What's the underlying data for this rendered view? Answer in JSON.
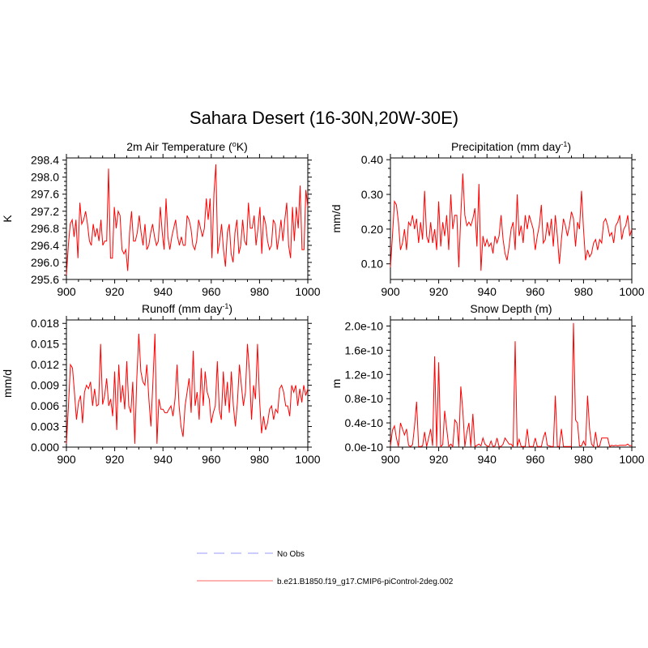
{
  "figure": {
    "title": "Sahara Desert (16-30N,20W-30E)"
  },
  "colors": {
    "series": "#ff0000",
    "obs": "#9999ff",
    "axis": "#000000"
  },
  "legend": {
    "entries": [
      {
        "label": "No Obs",
        "style": "dashed",
        "color": "#9999ff"
      },
      {
        "label": "b.e21.B1850.f19_g17.CMIP6-piControl-2deg.002",
        "style": "solid",
        "color": "#ff0000"
      }
    ]
  },
  "chart_data": [
    {
      "type": "line",
      "title": "2m Air Temperature (",
      "title_sup": "o",
      "title_suffix": "K)",
      "xlabel": "",
      "ylabel": "K",
      "xlim": [
        900,
        1000
      ],
      "ylim": [
        295.6,
        298.45
      ],
      "xticks": [
        900,
        920,
        940,
        960,
        980,
        1000
      ],
      "yticks": [
        295.6,
        296.0,
        296.4,
        296.8,
        297.2,
        297.6,
        298.0,
        298.4
      ],
      "ytick_labels": [
        "295.6",
        "296.0",
        "296.4",
        "296.8",
        "297.2",
        "297.6",
        "298.0",
        "298.4"
      ],
      "x_start": 900,
      "series": [
        {
          "name": "b.e21.B1850.f19_g17.CMIP6-piControl-2deg.002",
          "values": [
            295.7,
            296.4,
            296.9,
            297.0,
            296.6,
            297.0,
            296.1,
            297.4,
            296.9,
            297.0,
            297.2,
            296.9,
            296.5,
            296.4,
            296.9,
            296.6,
            296.8,
            296.5,
            297.0,
            296.4,
            296.5,
            296.5,
            298.2,
            296.1,
            296.1,
            297.3,
            296.8,
            297.2,
            297.1,
            296.3,
            296.2,
            296.3,
            295.8,
            296.7,
            297.2,
            296.5,
            296.5,
            296.7,
            297.1,
            296.7,
            296.4,
            296.9,
            296.3,
            296.4,
            296.7,
            296.9,
            296.6,
            296.4,
            296.5,
            297.3,
            296.7,
            296.3,
            297.5,
            296.6,
            296.3,
            296.6,
            296.8,
            297.0,
            296.6,
            296.4,
            296.6,
            296.4,
            296.4,
            297.1,
            297.0,
            296.8,
            296.4,
            296.3,
            296.5,
            297.0,
            296.8,
            296.6,
            296.8,
            297.5,
            297.0,
            297.5,
            296.1,
            297.6,
            298.3,
            296.2,
            296.5,
            296.9,
            296.3,
            295.9,
            296.7,
            296.9,
            296.2,
            296.0,
            296.7,
            297.0,
            296.2,
            296.4,
            297.0,
            296.5,
            296.4,
            297.4,
            296.8,
            296.8,
            297.1,
            296.4,
            296.8,
            297.3,
            296.2,
            297.1,
            296.9,
            296.5,
            296.3,
            296.4,
            297.0,
            296.9,
            296.3,
            296.6,
            297.0,
            296.5,
            297.0,
            297.4,
            296.4,
            296.1,
            297.3,
            296.5,
            297.3,
            296.8,
            297.8,
            296.3,
            296.3,
            297.7,
            297.3
          ]
        }
      ]
    },
    {
      "type": "line",
      "title": "Precipitation (mm day",
      "title_sup": "-1",
      "title_suffix": ")",
      "xlabel": "",
      "ylabel": "mm/d",
      "xlim": [
        900,
        1000
      ],
      "ylim": [
        0.055,
        0.405
      ],
      "xticks": [
        900,
        920,
        940,
        960,
        980,
        1000
      ],
      "yticks": [
        0.1,
        0.2,
        0.3,
        0.4
      ],
      "ytick_labels": [
        "0.10",
        "0.20",
        "0.30",
        "0.40"
      ],
      "x_start": 900,
      "series": [
        {
          "name": "b.e21.B1850.f19_g17.CMIP6-piControl-2deg.002",
          "values": [
            0.09,
            0.18,
            0.28,
            0.27,
            0.22,
            0.14,
            0.16,
            0.2,
            0.14,
            0.22,
            0.21,
            0.24,
            0.2,
            0.23,
            0.16,
            0.22,
            0.17,
            0.31,
            0.18,
            0.16,
            0.22,
            0.16,
            0.2,
            0.14,
            0.28,
            0.15,
            0.22,
            0.18,
            0.24,
            0.14,
            0.3,
            0.2,
            0.24,
            0.24,
            0.09,
            0.24,
            0.36,
            0.24,
            0.21,
            0.22,
            0.21,
            0.23,
            0.26,
            0.15,
            0.33,
            0.08,
            0.18,
            0.15,
            0.17,
            0.15,
            0.16,
            0.13,
            0.18,
            0.16,
            0.18,
            0.24,
            0.17,
            0.13,
            0.11,
            0.15,
            0.2,
            0.22,
            0.14,
            0.3,
            0.18,
            0.21,
            0.16,
            0.24,
            0.2,
            0.24,
            0.22,
            0.2,
            0.14,
            0.18,
            0.21,
            0.27,
            0.16,
            0.17,
            0.22,
            0.18,
            0.23,
            0.15,
            0.24,
            0.18,
            0.1,
            0.17,
            0.23,
            0.21,
            0.18,
            0.21,
            0.25,
            0.23,
            0.15,
            0.22,
            0.2,
            0.31,
            0.2,
            0.11,
            0.14,
            0.12,
            0.13,
            0.16,
            0.17,
            0.14,
            0.17,
            0.16,
            0.22,
            0.23,
            0.21,
            0.18,
            0.19,
            0.16,
            0.21,
            0.22,
            0.24,
            0.17,
            0.2,
            0.21,
            0.24,
            0.18,
            0.2
          ]
        }
      ]
    },
    {
      "type": "line",
      "title": "Runoff (mm day",
      "title_sup": "-1",
      "title_suffix": ")",
      "xlabel": "",
      "ylabel": "mm/d",
      "xlim": [
        900,
        1000
      ],
      "ylim": [
        0,
        0.0185
      ],
      "xticks": [
        900,
        920,
        940,
        960,
        980,
        1000
      ],
      "yticks": [
        0,
        0.003,
        0.006,
        0.009,
        0.012,
        0.015,
        0.018
      ],
      "ytick_labels": [
        "0.000",
        "0.003",
        "0.006",
        "0.009",
        "0.012",
        "0.015",
        "0.018"
      ],
      "x_start": 900,
      "series": [
        {
          "name": "b.e21.B1850.f19_g17.CMIP6-piControl-2deg.002",
          "values": [
            0.0005,
            0.006,
            0.012,
            0.0115,
            0.008,
            0.004,
            0.0065,
            0.0075,
            0.0035,
            0.008,
            0.009,
            0.0085,
            0.0095,
            0.006,
            0.0085,
            0.006,
            0.0062,
            0.015,
            0.0062,
            0.0075,
            0.01,
            0.006,
            0.007,
            0.0045,
            0.011,
            0.0025,
            0.012,
            0.0065,
            0.009,
            0.0055,
            0.0125,
            0.006,
            0.005,
            0.0095,
            0.0005,
            0.01,
            0.0165,
            0.011,
            0.0095,
            0.009,
            0.012,
            0.007,
            0.003,
            0.0095,
            0.0165,
            0.0005,
            0.007,
            0.0055,
            0.0055,
            0.005,
            0.005,
            0.0055,
            0.006,
            0.0045,
            0.007,
            0.012,
            0.006,
            0.003,
            0.0015,
            0.006,
            0.008,
            0.01,
            0.005,
            0.014,
            0.006,
            0.008,
            0.004,
            0.0115,
            0.006,
            0.011,
            0.008,
            0.007,
            0.0035,
            0.005,
            0.006,
            0.0125,
            0.0055,
            0.004,
            0.011,
            0.006,
            0.0095,
            0.005,
            0.011,
            0.006,
            0.003,
            0.0065,
            0.012,
            0.009,
            0.006,
            0.008,
            0.015,
            0.011,
            0.004,
            0.009,
            0.007,
            0.015,
            0.007,
            0.002,
            0.0045,
            0.0025,
            0.0035,
            0.0055,
            0.006,
            0.004,
            0.0055,
            0.005,
            0.0085,
            0.009,
            0.008,
            0.006,
            0.006,
            0.0045,
            0.009,
            0.008,
            0.009,
            0.006,
            0.0085,
            0.0065,
            0.009,
            0.0075,
            0.0085
          ]
        }
      ]
    },
    {
      "type": "line",
      "title": "Snow Depth (m)",
      "title_sup": "",
      "title_suffix": "",
      "xlabel": "",
      "ylabel": "m",
      "xlim": [
        900,
        1000
      ],
      "ylim": [
        0,
        2.1e-10
      ],
      "xticks": [
        900,
        920,
        940,
        960,
        980,
        1000
      ],
      "yticks": [
        0,
        4e-11,
        8e-11,
        1.2e-10,
        1.6e-10,
        2e-10
      ],
      "ytick_labels": [
        "0.0e-10",
        "0.4e-10",
        "0.8e-10",
        "1.2e-10",
        "1.6e-10",
        "2.0e-10"
      ],
      "x_start": 900,
      "series": [
        {
          "name": "b.e21.B1850.f19_g17.CMIP6-piControl-2deg.002",
          "values": [
            2e-12,
            2.8e-11,
            3.5e-11,
            1.5e-11,
            1e-12,
            4e-11,
            3e-11,
            2e-11,
            3e-11,
            3e-12,
            1e-12,
            4e-12,
            3.5e-11,
            7.5e-11,
            1e-12,
            1e-12,
            2e-12,
            2.5e-11,
            1e-12,
            1.5e-11,
            3e-11,
            2e-12,
            1.5e-10,
            1e-12,
            1.4e-10,
            1e-12,
            4e-12,
            6e-11,
            3e-11,
            1e-12,
            5e-12,
            1e-12,
            4.5e-11,
            4e-11,
            1e-12,
            1e-10,
            6e-11,
            1e-12,
            2.5e-11,
            4e-11,
            1e-12,
            5.5e-11,
            1e-12,
            3e-12,
            5e-12,
            2e-12,
            1.5e-11,
            5e-12,
            2e-12,
            1e-12,
            1e-11,
            1e-12,
            2e-12,
            1.5e-11,
            1e-12,
            1e-12,
            5e-12,
            1.5e-11,
            1e-11,
            5e-12,
            5e-12,
            1e-12,
            1.75e-10,
            1e-12,
            1.3e-11,
            1e-12,
            1e-12,
            1e-12,
            3e-11,
            1e-12,
            1e-12,
            1e-12,
            1.5e-11,
            1e-12,
            1e-12,
            1e-12,
            1.5e-11,
            2.5e-11,
            3e-12,
            2e-12,
            1e-12,
            1e-12,
            8.5e-11,
            1e-12,
            1e-12,
            3e-11,
            1e-12,
            1e-12,
            1e-12,
            1e-12,
            1e-12,
            2.05e-10,
            4.5e-11,
            4e-11,
            2e-12,
            2e-12,
            1e-11,
            2e-12,
            8.5e-11,
            3e-11,
            5e-12,
            1e-12,
            2.5e-11,
            1e-12,
            2e-12,
            1.5e-11,
            1.5e-11,
            1.5e-11,
            1.5e-11,
            1e-12,
            3e-12,
            2e-12,
            3e-12,
            2e-12,
            3e-12,
            3e-12,
            3e-12,
            3e-12,
            5e-12,
            2e-12,
            3e-12
          ]
        }
      ]
    }
  ]
}
